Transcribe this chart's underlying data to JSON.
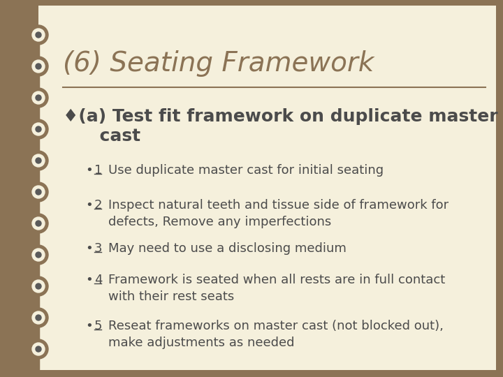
{
  "bg_outer": "#8B7355",
  "bg_inner": "#F5F0DC",
  "title": "(6) Seating Framework",
  "title_color": "#8B7355",
  "title_fontsize": 28,
  "divider_color": "#8B7355",
  "subtitle_color": "#4B4B4B",
  "subtitle_fontsize": 18,
  "bullet_color": "#4B4B4B",
  "bullet_fontsize": 13,
  "bullets": [
    {
      "num": "1",
      "text": "Use duplicate master cast for initial seating",
      "multiline": false
    },
    {
      "num": "2",
      "text": "Inspect natural teeth and tissue side of framework for\ndefects, Remove any imperfections",
      "multiline": true
    },
    {
      "num": "3",
      "text": "May need to use a disclosing medium",
      "multiline": false
    },
    {
      "num": "4",
      "text": "Framework is seated when all rests are in full contact\nwith their rest seats",
      "multiline": true
    },
    {
      "num": "5",
      "text": "Reseat frameworks on master cast (not blocked out),\nmake adjustments as needed",
      "multiline": true
    }
  ],
  "spiral_color": "#8B7355",
  "spiral_dot_color": "#5A5A5A",
  "figsize": [
    7.2,
    5.4
  ],
  "dpi": 100
}
